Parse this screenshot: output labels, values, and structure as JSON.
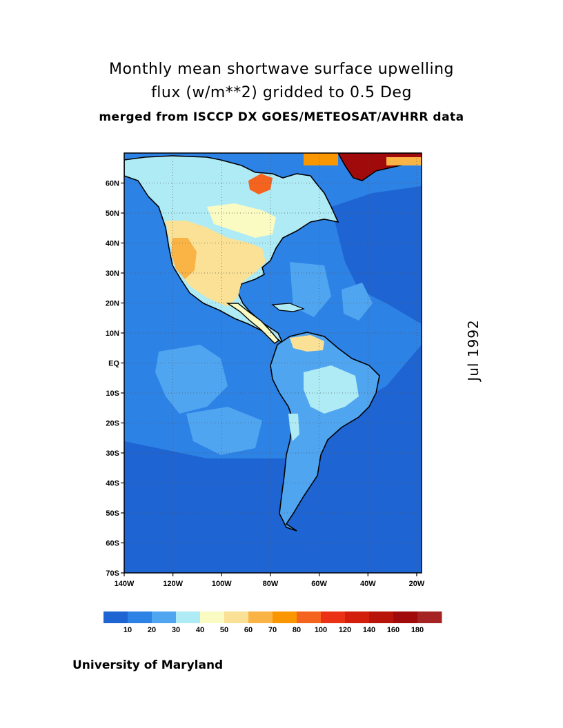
{
  "title": {
    "line1": "Monthly mean shortwave surface upwelling",
    "line2": "flux (w/m**2) gridded to 0.5 Deg",
    "line3": "merged from ISCCP DX GOES/METEOSAT/AVHRR data"
  },
  "date_label": "Jul 1992",
  "footer": "University of Maryland",
  "map": {
    "lat_range": [
      -70,
      70
    ],
    "lon_range": [
      -140,
      -18
    ],
    "lat_labels": [
      "60N",
      "50N",
      "40N",
      "30N",
      "20N",
      "10N",
      "EQ",
      "10S",
      "20S",
      "30S",
      "40S",
      "50S",
      "60S",
      "70S"
    ],
    "lat_values": [
      60,
      50,
      40,
      30,
      20,
      10,
      0,
      -10,
      -20,
      -30,
      -40,
      -50,
      -60,
      -70
    ],
    "lon_labels": [
      "140W",
      "120W",
      "100W",
      "80W",
      "60W",
      "40W",
      "20W"
    ],
    "lon_values": [
      -140,
      -120,
      -100,
      -80,
      -60,
      -40,
      -20
    ],
    "grid_lines": "dotted"
  },
  "colorbar": {
    "colors": [
      "#1e64d2",
      "#2d82e6",
      "#50a5f0",
      "#afebf5",
      "#fafac3",
      "#fae196",
      "#fab446",
      "#fa9600",
      "#f5641e",
      "#eb3214",
      "#d21e0a",
      "#b9140a",
      "#a00a0a",
      "#a52323"
    ],
    "labels": [
      "10",
      "20",
      "30",
      "40",
      "50",
      "60",
      "70",
      "80",
      "100",
      "120",
      "140",
      "160",
      "180"
    ]
  }
}
